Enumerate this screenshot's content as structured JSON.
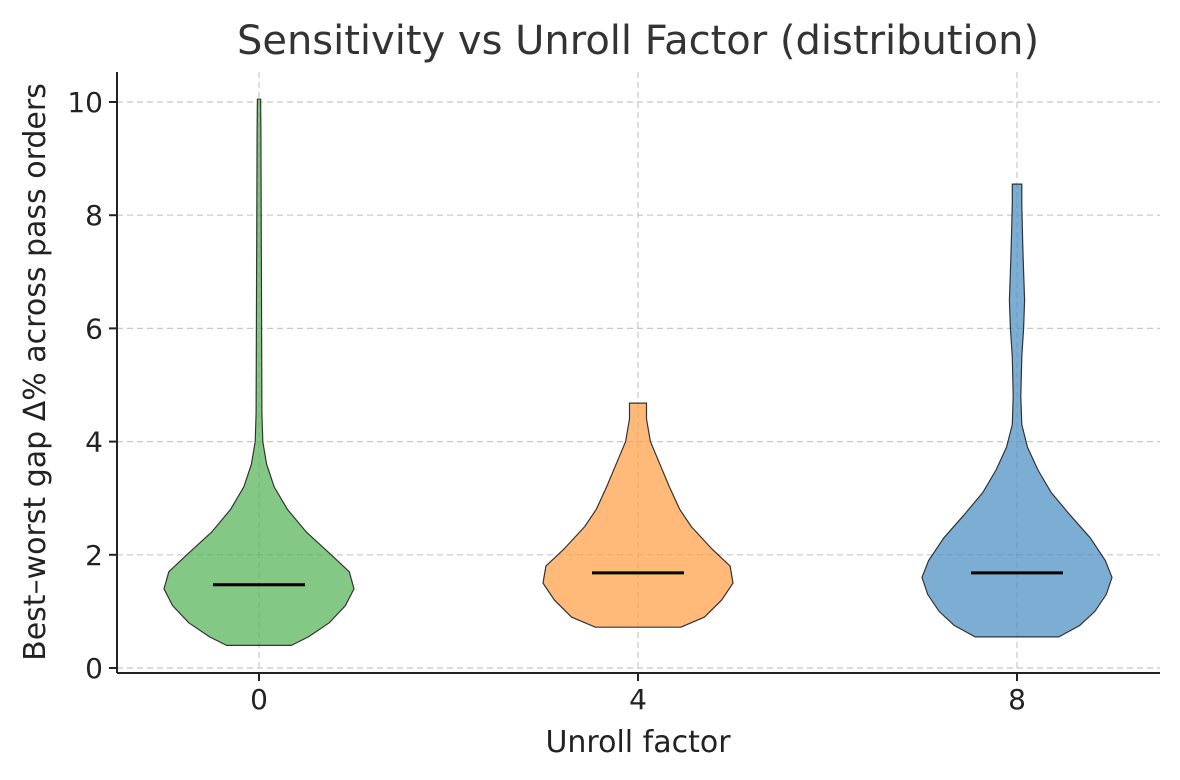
{
  "chart_data": {
    "type": "violin",
    "title": "Sensitivity vs Unroll Factor (distribution)",
    "xlabel": "Unroll factor",
    "ylabel": "Best–worst gap Δ% across pass orders",
    "ylim": [
      0,
      10.5
    ],
    "yticks": [
      0,
      2,
      4,
      6,
      8,
      10
    ],
    "grid": true,
    "categories": [
      "0",
      "4",
      "8"
    ],
    "series": [
      {
        "category": "0",
        "color": "#55b356",
        "median": 1.47,
        "min": 0.4,
        "max": 10.05,
        "profile": [
          [
            0.4,
            0.34
          ],
          [
            0.55,
            0.52
          ],
          [
            0.8,
            0.74
          ],
          [
            1.1,
            0.91
          ],
          [
            1.4,
            1.0
          ],
          [
            1.7,
            0.95
          ],
          [
            2.0,
            0.76
          ],
          [
            2.4,
            0.5
          ],
          [
            2.8,
            0.3
          ],
          [
            3.2,
            0.16
          ],
          [
            3.6,
            0.08
          ],
          [
            4.0,
            0.04
          ],
          [
            4.5,
            0.03
          ],
          [
            5.5,
            0.028
          ],
          [
            7.0,
            0.025
          ],
          [
            8.5,
            0.022
          ],
          [
            9.5,
            0.02
          ],
          [
            10.05,
            0.017
          ]
        ]
      },
      {
        "category": "4",
        "color": "#ff9e44",
        "median": 1.68,
        "min": 0.72,
        "max": 4.68,
        "profile": [
          [
            0.72,
            0.45
          ],
          [
            0.9,
            0.7
          ],
          [
            1.2,
            0.88
          ],
          [
            1.5,
            1.0
          ],
          [
            1.8,
            0.97
          ],
          [
            2.1,
            0.78
          ],
          [
            2.5,
            0.56
          ],
          [
            2.8,
            0.44
          ],
          [
            3.2,
            0.33
          ],
          [
            3.6,
            0.23
          ],
          [
            4.0,
            0.13
          ],
          [
            4.4,
            0.09
          ],
          [
            4.68,
            0.09
          ]
        ]
      },
      {
        "category": "8",
        "color": "#4a8fc4",
        "median": 1.68,
        "min": 0.55,
        "max": 8.55,
        "profile": [
          [
            0.55,
            0.44
          ],
          [
            0.75,
            0.66
          ],
          [
            1.0,
            0.82
          ],
          [
            1.3,
            0.94
          ],
          [
            1.6,
            1.0
          ],
          [
            1.9,
            0.93
          ],
          [
            2.3,
            0.77
          ],
          [
            2.7,
            0.56
          ],
          [
            3.1,
            0.36
          ],
          [
            3.5,
            0.22
          ],
          [
            3.9,
            0.11
          ],
          [
            4.3,
            0.05
          ],
          [
            4.8,
            0.04
          ],
          [
            5.5,
            0.05
          ],
          [
            6.0,
            0.07
          ],
          [
            6.5,
            0.08
          ],
          [
            7.0,
            0.07
          ],
          [
            7.5,
            0.06
          ],
          [
            8.2,
            0.05
          ],
          [
            8.55,
            0.05
          ]
        ]
      }
    ]
  }
}
